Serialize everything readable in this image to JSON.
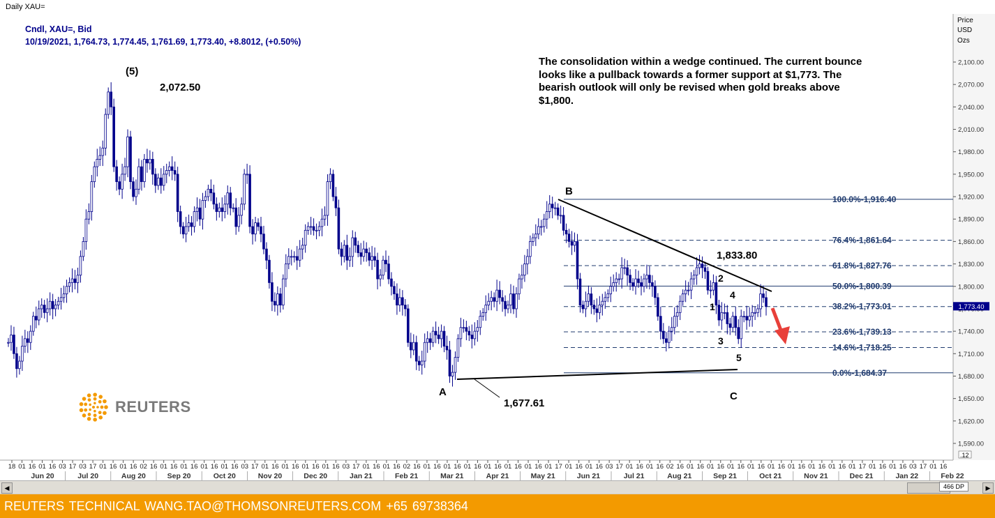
{
  "window": {
    "title": "Daily XAU="
  },
  "info": {
    "line1": "Cndl, XAU=, Bid",
    "line2": "10/19/2021, 1,764.73, 1,774.45, 1,761.69, 1,773.40, +8.8012, (+0.50%)"
  },
  "commentary": "The consolidation within a wedge continued. The current bounce looks like a pullback towards a former support at $1,773. The bearish outlook will only be revised when gold breaks above $1,800.",
  "logo": {
    "text": "REUTERS",
    "icon": "reuters-dot-logo-icon"
  },
  "footer": {
    "text": "REUTERS TECHNICAL  WANG.TAO@THOMSONREUTERS.COM  +65 69738364"
  },
  "zoom_text": "466 DP",
  "chart_data": {
    "type": "candlestick",
    "symbol": "XAU=",
    "ylabel": [
      "Price",
      "USD",
      "Ozs"
    ],
    "ylim": [
      1560,
      2130
    ],
    "y_ticks": [
      1590,
      1620,
      1650,
      1680,
      1710,
      1740,
      1770,
      1800,
      1830,
      1860,
      1890,
      1920,
      1950,
      1980,
      2010,
      2040,
      2070,
      2100
    ],
    "y_tick_labels": [
      "1,590.00",
      "1,620.00",
      "1,650.00",
      "1,680.00",
      "1,710.00",
      "1,740.00",
      "1,770.00",
      "1,800.00",
      "1,830.00",
      "1,860.00",
      "1,890.00",
      "1,920.00",
      "1,950.00",
      "1,980.00",
      "2,010.00",
      "2,040.00",
      "2,070.00",
      "2,100.00"
    ],
    "x_ticks_days": [
      "18",
      "01",
      "16",
      "01",
      "16",
      "03",
      "17",
      "03",
      "17",
      "01",
      "16",
      "01",
      "16",
      "02",
      "16",
      "01",
      "16",
      "01",
      "16",
      "01",
      "16",
      "01",
      "16",
      "03",
      "17",
      "01",
      "16",
      "01",
      "16",
      "01",
      "16",
      "01",
      "16",
      "03",
      "17",
      "01",
      "16",
      "01",
      "16",
      "02",
      "16",
      "01",
      "16",
      "01",
      "16",
      "01",
      "16",
      "01",
      "16",
      "01",
      "16",
      "01",
      "16",
      "01",
      "17",
      "01",
      "16",
      "01",
      "16",
      "03",
      "17",
      "01",
      "16",
      "01",
      "16",
      "02",
      "16",
      "01",
      "16",
      "01",
      "16",
      "01",
      "16",
      "01",
      "16",
      "01",
      "16",
      "01",
      "16",
      "01",
      "16",
      "01",
      "16",
      "01",
      "17",
      "01",
      "16",
      "01",
      "16",
      "03",
      "17",
      "01",
      "16"
    ],
    "x_months": [
      "Jun 20",
      "Jul 20",
      "Aug 20",
      "Sep 20",
      "Oct 20",
      "Nov 20",
      "Dec 20",
      "Jan 21",
      "Feb 21",
      "Mar 21",
      "Apr 21",
      "May 21",
      "Jun 21",
      "Jul 21",
      "Aug 21",
      "Sep 21",
      "Oct 21",
      "Nov 21",
      "Dec 21",
      "Jan 22",
      "Feb 22"
    ],
    "last_price_label": "1,773.40",
    "last_price": 1773.4,
    "fib_levels": [
      {
        "label": "100.0%",
        "value_label": "1,916.40",
        "value": 1916.4,
        "style": "solid"
      },
      {
        "label": "76.4%",
        "value_label": "1,861.64",
        "value": 1861.64,
        "style": "dashed"
      },
      {
        "label": "61.8%",
        "value_label": "1,827.76",
        "value": 1827.76,
        "style": "dashed"
      },
      {
        "label": "50.0%",
        "value_label": "1,800.39",
        "value": 1800.39,
        "style": "solid"
      },
      {
        "label": "38.2%",
        "value_label": "1,773.01",
        "value": 1773.01,
        "style": "dashed"
      },
      {
        "label": "23.6%",
        "value_label": "1,739.13",
        "value": 1739.13,
        "style": "dashed"
      },
      {
        "label": "14.6%",
        "value_label": "1,718.25",
        "value": 1718.25,
        "style": "dashed"
      },
      {
        "label": "0.0%",
        "value_label": "1,684.37",
        "value": 1684.37,
        "style": "solid"
      }
    ],
    "annotations": {
      "wave5_top": "(5)",
      "peak_value": "2,072.50",
      "point_A": "A",
      "point_A_value": "1,677.61",
      "point_B": "B",
      "point_C": "C",
      "high_value": "1,833.80",
      "wave_1": "1",
      "wave_2": "2",
      "wave_3": "3",
      "wave_4": "4",
      "wave_5": "5"
    },
    "key_points": [
      {
        "date": "2020-08-06",
        "value": 2072.5,
        "label": "(5)"
      },
      {
        "date": "2021-03-08",
        "value": 1677.61,
        "label": "A"
      },
      {
        "date": "2021-06-01",
        "value": 1916.4,
        "label": "B"
      },
      {
        "date": "2021-09-03",
        "value": 1833.8
      },
      {
        "date": "2021-08-09",
        "value": 1684.37
      }
    ],
    "series": [
      {
        "period": "Jun 2020",
        "closes": [
          1725,
          1735,
          1710,
          1690,
          1700,
          1720,
          1730,
          1725,
          1740,
          1760,
          1755,
          1770,
          1775,
          1765,
          1770,
          1780,
          1770
        ]
      },
      {
        "period": "Jul 2020",
        "closes": [
          1775,
          1780,
          1785,
          1790,
          1800,
          1805,
          1810,
          1805,
          1815,
          1840,
          1860,
          1890,
          1900,
          1940,
          1960,
          1970,
          1975
        ]
      },
      {
        "period": "Aug 2020",
        "closes": [
          1985,
          2030,
          2060,
          2040,
          1960,
          1940,
          1930,
          1950,
          1960,
          2000,
          1940,
          1920,
          1930,
          1960,
          1940,
          1970,
          1965
        ]
      },
      {
        "period": "Sep 2020",
        "closes": [
          1970,
          1950,
          1935,
          1945,
          1935,
          1950,
          1955,
          1960,
          1955,
          1950,
          1900,
          1880,
          1870,
          1880,
          1885,
          1880
        ]
      },
      {
        "period": "Oct 2020",
        "closes": [
          1900,
          1905,
          1890,
          1915,
          1920,
          1930,
          1925,
          1910,
          1900,
          1905,
          1900,
          1910,
          1925,
          1905,
          1905,
          1880
        ]
      },
      {
        "period": "Nov 2020",
        "closes": [
          1895,
          1910,
          1950,
          1950,
          1880,
          1870,
          1885,
          1880,
          1870,
          1850,
          1835,
          1805,
          1780,
          1775,
          1790,
          1775,
          1810,
          1830,
          1840,
          1840
        ]
      },
      {
        "period": "Dec 2020",
        "closes": [
          1840,
          1835,
          1850,
          1855,
          1875,
          1880,
          1880,
          1875,
          1875,
          1880,
          1890,
          1895,
          1940,
          1950,
          1920,
          1905
        ]
      },
      {
        "period": "Jan 2021",
        "closes": [
          1850,
          1840,
          1855,
          1835,
          1840,
          1865,
          1855,
          1845,
          1840,
          1850,
          1845,
          1835,
          1840,
          1835,
          1810,
          1815
        ]
      },
      {
        "period": "Feb 2021",
        "closes": [
          1835,
          1830,
          1810,
          1800,
          1790,
          1775,
          1785,
          1775,
          1770,
          1725,
          1715,
          1725,
          1700,
          1695,
          1700,
          1725
        ]
      },
      {
        "period": "Mar 2021",
        "closes": [
          1730,
          1725,
          1740,
          1735,
          1730,
          1740,
          1720,
          1715,
          1680,
          1685,
          1705,
          1730,
          1745,
          1745,
          1740,
          1735
        ]
      },
      {
        "period": "Apr 2021",
        "closes": [
          1730,
          1740,
          1745,
          1760,
          1765,
          1775,
          1780,
          1785,
          1780,
          1795,
          1785,
          1780,
          1770,
          1775,
          1790,
          1770
        ]
      },
      {
        "period": "May 2021",
        "closes": [
          1790,
          1810,
          1815,
          1830,
          1840,
          1860,
          1865,
          1870,
          1880,
          1880,
          1890,
          1900,
          1910,
          1905,
          1905,
          1895
        ]
      },
      {
        "period": "Jun 2021",
        "closes": [
          1895,
          1875,
          1870,
          1860,
          1855,
          1860,
          1810,
          1775,
          1770,
          1780,
          1790,
          1775,
          1770,
          1765,
          1775,
          1780
        ]
      },
      {
        "period": "Jul 2021",
        "closes": [
          1785,
          1790,
          1800,
          1805,
          1810,
          1810,
          1825,
          1825,
          1815,
          1805,
          1800,
          1810,
          1805,
          1800,
          1810,
          1815
        ]
      },
      {
        "period": "Aug 2021",
        "closes": [
          1805,
          1800,
          1785,
          1760,
          1740,
          1730,
          1725,
          1740,
          1745,
          1760,
          1765,
          1780,
          1790,
          1795,
          1795,
          1810
        ]
      },
      {
        "period": "Sep 2021",
        "closes": [
          1815,
          1825,
          1830,
          1825,
          1820,
          1795,
          1795,
          1805,
          1775,
          1755,
          1765,
          1765,
          1750,
          1745,
          1760,
          1745,
          1730
        ]
      },
      {
        "period": "Oct 2021",
        "closes": [
          1760,
          1760,
          1755,
          1760,
          1765,
          1765,
          1770,
          1790,
          1785,
          1773
        ]
      }
    ]
  }
}
